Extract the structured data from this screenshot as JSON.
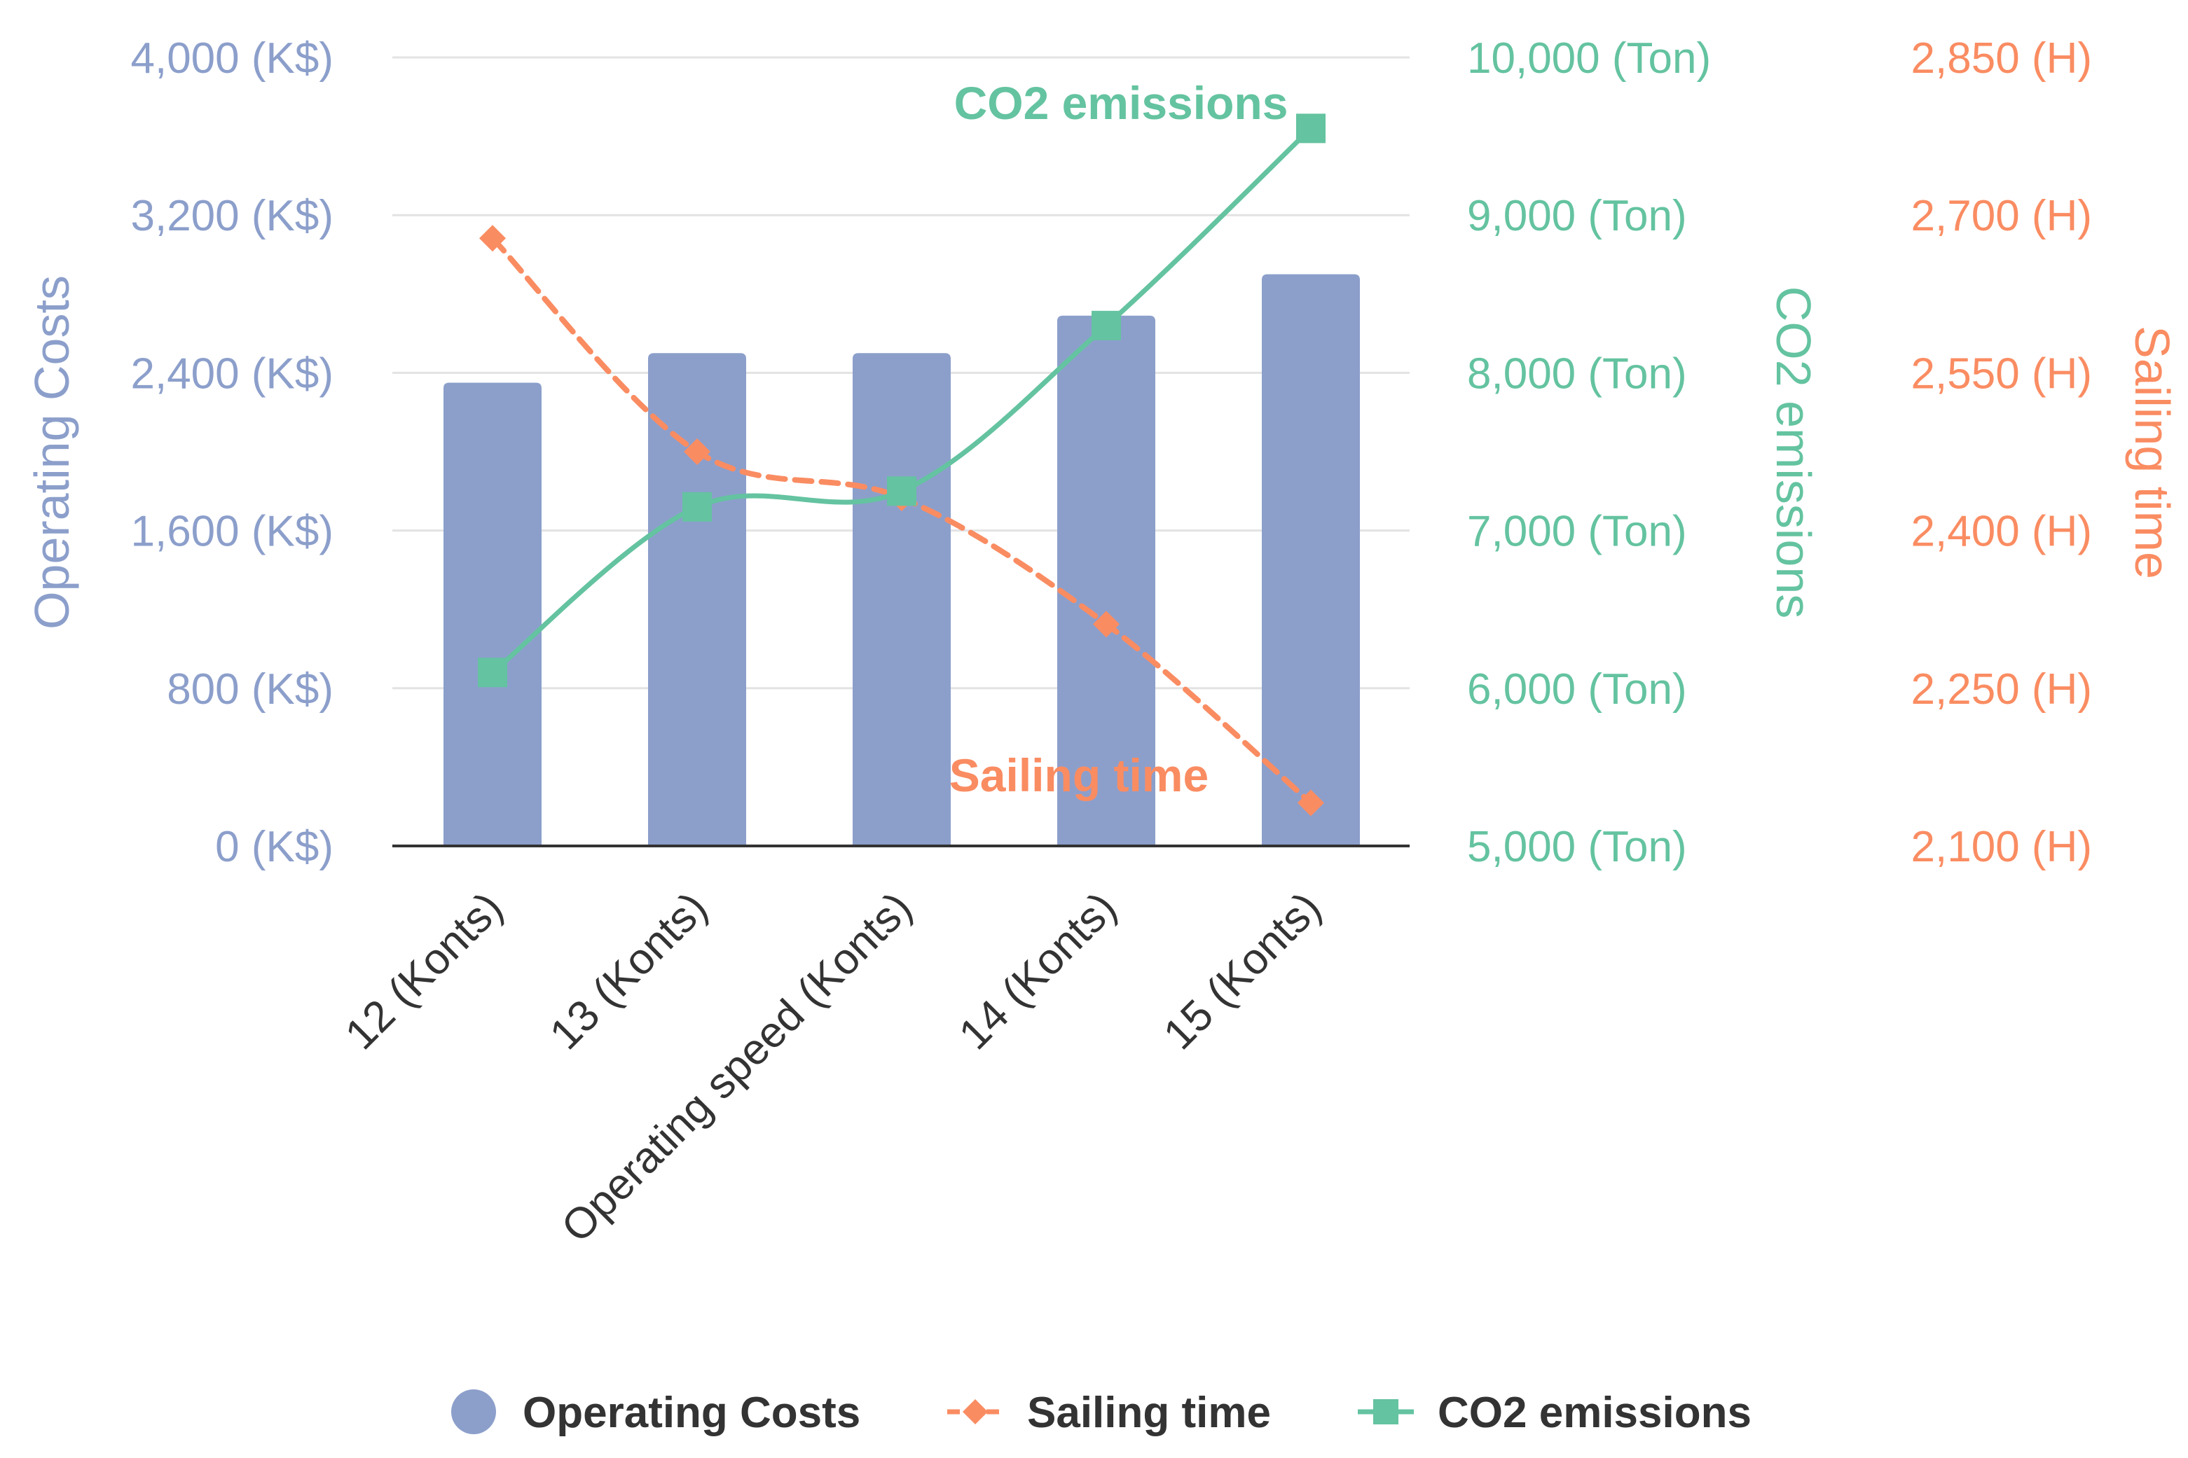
{
  "chart_data": {
    "type": "bar",
    "categories": [
      "12 (Konts)",
      "13 (Konts)",
      "Operating speed (Konts)",
      "14 (Konts)",
      "15 (Konts)"
    ],
    "series": [
      {
        "name": "Operating Costs",
        "type": "bar",
        "axis": "left",
        "unit": "K$",
        "values": [
          2350,
          2500,
          2500,
          2690,
          2900
        ],
        "color": "#8c9fcb"
      },
      {
        "name": "Sailing time",
        "type": "line",
        "style": "dashed",
        "marker": "diamond",
        "axis": "right-2",
        "unit": "H",
        "values": [
          2678,
          2475,
          2431,
          2311,
          2141
        ],
        "color": "#fa8c62"
      },
      {
        "name": "CO2 emissions",
        "type": "line",
        "style": "smooth",
        "marker": "square",
        "axis": "right-1",
        "unit": "Ton",
        "values": [
          6100,
          7150,
          7250,
          8300,
          9550
        ],
        "color": "#64c3a0"
      }
    ],
    "axes": {
      "left": {
        "title": "Operating Costs",
        "ylim": [
          0,
          4000
        ],
        "ticks": [
          "0 (K$)",
          "800 (K$)",
          "1,600 (K$)",
          "2,400 (K$)",
          "3,200 (K$)",
          "4,000 (K$)"
        ]
      },
      "right1": {
        "title": "CO2 emissions",
        "ylim": [
          5000,
          10000
        ],
        "ticks": [
          "5,000 (Ton)",
          "6,000 (Ton)",
          "7,000 (Ton)",
          "8,000 (Ton)",
          "9,000 (Ton)",
          "10,000 (Ton)"
        ]
      },
      "right2": {
        "title": "Sailing time",
        "ylim": [
          2100,
          2850
        ],
        "ticks": [
          "2,100 (H)",
          "2,250 (H)",
          "2,400 (H)",
          "2,550 (H)",
          "2,700 (H)",
          "2,850 (H)"
        ]
      }
    },
    "annotations": {
      "co2": "CO2 emissions",
      "sailing": "Sailing time"
    },
    "legend": {
      "position": "bottom",
      "items": [
        "Operating Costs",
        "Sailing time",
        "CO2 emissions"
      ]
    },
    "grid": true,
    "title": "",
    "xlabel": ""
  }
}
